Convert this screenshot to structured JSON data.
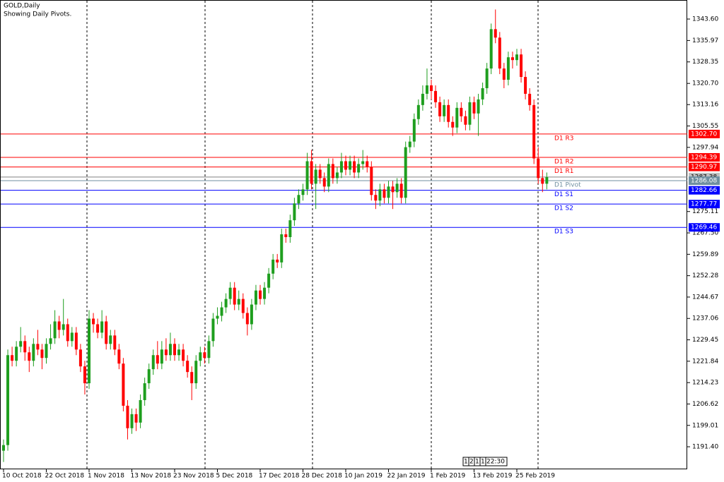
{
  "chart_data": {
    "type": "candlestick",
    "title": "GOLD,Daily",
    "subtitle": "Showing Daily Pivots.",
    "categories": [
      "10 Oct 2018",
      null,
      null,
      null,
      null,
      null,
      null,
      null,
      null,
      null,
      "22 Oct 2018",
      null,
      null,
      null,
      null,
      null,
      null,
      null,
      null,
      null,
      "1 Nov 2018",
      null,
      null,
      null,
      null,
      null,
      null,
      null,
      null,
      null,
      "13 Nov 2018",
      null,
      null,
      null,
      null,
      null,
      null,
      null,
      null,
      null,
      "23 Nov 2018",
      null,
      null,
      null,
      null,
      null,
      null,
      null,
      null,
      null,
      "5 Dec 2018",
      null,
      null,
      null,
      null,
      null,
      null,
      null,
      null,
      null,
      "17 Dec 2018",
      null,
      null,
      null,
      null,
      null,
      null,
      null,
      null,
      null,
      "28 Dec 2018",
      null,
      null,
      null,
      null,
      null,
      null,
      null,
      null,
      null,
      "10 Jan 2019",
      null,
      null,
      null,
      null,
      null,
      null,
      null,
      null,
      null,
      "22 Jan 2019",
      null,
      null,
      null,
      null,
      null,
      null,
      null,
      null,
      null,
      "1 Feb 2019",
      null,
      null,
      null,
      null,
      null,
      null,
      null,
      null,
      null,
      "13 Feb 2019",
      null,
      null,
      null,
      null,
      null,
      null,
      null,
      null,
      null,
      "25 Feb 2019",
      null,
      null,
      null,
      null,
      null,
      null,
      null
    ],
    "open": [
      1190,
      1192,
      1224,
      1222,
      1227,
      1229,
      1225,
      1222,
      1228,
      1226,
      1223,
      1228,
      1230,
      1236,
      1233,
      1235,
      1229,
      1232,
      1226,
      1220,
      1214,
      1237,
      1235,
      1232,
      1236,
      1228,
      1231,
      1226,
      1221,
      1206,
      1198,
      1203,
      1200,
      1208,
      1214,
      1219,
      1224,
      1221,
      1226,
      1224,
      1228,
      1224,
      1226,
      1222,
      1218,
      1214,
      1222,
      1225,
      1223,
      1229,
      1237,
      1238,
      1241,
      1244,
      1248,
      1242,
      1244,
      1239,
      1235,
      1242,
      1247,
      1244,
      1248,
      1253,
      1258,
      1257,
      1267,
      1266,
      1272,
      1278,
      1281,
      1283,
      1293,
      1285,
      1290,
      1287,
      1284,
      1292,
      1287,
      1289,
      1293,
      1290,
      1293,
      1289,
      1292,
      1293,
      1291,
      1281,
      1279,
      1283,
      1280,
      1284,
      1282,
      1285,
      1280,
      1298,
      1300,
      1308,
      1313,
      1317,
      1320,
      1318,
      1314,
      1309,
      1313,
      1307,
      1305,
      1312,
      1309,
      1306,
      1314,
      1310,
      1315,
      1319,
      1326,
      1340,
      1337,
      1326,
      1322,
      1330,
      1329,
      1331,
      1323,
      1317,
      1313,
      1294,
      1287,
      1285
    ],
    "high": [
      1194,
      1226,
      1227,
      1229,
      1234,
      1231,
      1227,
      1230,
      1233,
      1228,
      1230,
      1235,
      1240,
      1238,
      1244,
      1237,
      1234,
      1234,
      1228,
      1222,
      1240,
      1239,
      1237,
      1240,
      1238,
      1233,
      1233,
      1228,
      1223,
      1208,
      1205,
      1205,
      1210,
      1216,
      1221,
      1226,
      1229,
      1229,
      1230,
      1232,
      1230,
      1228,
      1228,
      1224,
      1220,
      1224,
      1227,
      1227,
      1231,
      1239,
      1241,
      1243,
      1246,
      1250,
      1250,
      1247,
      1246,
      1241,
      1244,
      1249,
      1249,
      1250,
      1255,
      1260,
      1260,
      1269,
      1269,
      1274,
      1280,
      1283,
      1285,
      1296,
      1297,
      1292,
      1292,
      1289,
      1294,
      1294,
      1291,
      1296,
      1295,
      1295,
      1295,
      1294,
      1297,
      1295,
      1293,
      1283,
      1285,
      1285,
      1286,
      1286,
      1287,
      1287,
      1300,
      1302,
      1310,
      1315,
      1320,
      1326,
      1322,
      1320,
      1316,
      1315,
      1315,
      1309,
      1314,
      1314,
      1311,
      1316,
      1316,
      1317,
      1321,
      1328,
      1342,
      1347,
      1339,
      1328,
      1332,
      1332,
      1333,
      1333,
      1325,
      1319,
      1315,
      1298,
      1290,
      1289
    ],
    "low": [
      1186,
      1190,
      1220,
      1220,
      1225,
      1222,
      1218,
      1220,
      1224,
      1219,
      1221,
      1226,
      1228,
      1230,
      1231,
      1227,
      1227,
      1224,
      1218,
      1210,
      1212,
      1232,
      1230,
      1230,
      1226,
      1226,
      1224,
      1219,
      1204,
      1194,
      1196,
      1197,
      1198,
      1206,
      1212,
      1217,
      1219,
      1219,
      1222,
      1222,
      1222,
      1222,
      1220,
      1216,
      1208,
      1212,
      1220,
      1221,
      1221,
      1227,
      1235,
      1236,
      1239,
      1242,
      1240,
      1240,
      1237,
      1231,
      1233,
      1240,
      1242,
      1242,
      1246,
      1251,
      1255,
      1255,
      1264,
      1264,
      1270,
      1276,
      1279,
      1281,
      1283,
      1276,
      1285,
      1282,
      1282,
      1285,
      1285,
      1287,
      1288,
      1288,
      1287,
      1287,
      1290,
      1289,
      1279,
      1276,
      1277,
      1278,
      1278,
      1276,
      1280,
      1278,
      1278,
      1296,
      1298,
      1306,
      1311,
      1315,
      1315,
      1312,
      1307,
      1307,
      1305,
      1302,
      1303,
      1307,
      1304,
      1304,
      1308,
      1302,
      1313,
      1317,
      1324,
      1335,
      1324,
      1319,
      1320,
      1326,
      1327,
      1321,
      1315,
      1311,
      1292,
      1285,
      1282,
      1283
    ],
    "close": [
      1192,
      1224,
      1222,
      1227,
      1229,
      1225,
      1222,
      1228,
      1226,
      1223,
      1228,
      1230,
      1236,
      1233,
      1235,
      1229,
      1232,
      1226,
      1220,
      1214,
      1237,
      1235,
      1232,
      1236,
      1228,
      1231,
      1226,
      1221,
      1206,
      1198,
      1203,
      1200,
      1208,
      1214,
      1219,
      1224,
      1221,
      1226,
      1224,
      1228,
      1224,
      1226,
      1222,
      1218,
      1214,
      1222,
      1225,
      1223,
      1229,
      1237,
      1238,
      1241,
      1244,
      1248,
      1242,
      1244,
      1239,
      1235,
      1242,
      1247,
      1244,
      1248,
      1253,
      1258,
      1257,
      1267,
      1266,
      1272,
      1278,
      1281,
      1283,
      1293,
      1285,
      1290,
      1287,
      1284,
      1292,
      1287,
      1289,
      1293,
      1290,
      1293,
      1289,
      1292,
      1293,
      1291,
      1281,
      1279,
      1283,
      1280,
      1284,
      1282,
      1285,
      1280,
      1298,
      1300,
      1308,
      1313,
      1317,
      1320,
      1318,
      1314,
      1309,
      1313,
      1307,
      1305,
      1312,
      1309,
      1306,
      1314,
      1310,
      1315,
      1319,
      1326,
      1340,
      1337,
      1326,
      1322,
      1330,
      1329,
      1331,
      1323,
      1317,
      1313,
      1294,
      1287,
      1285,
      1287.38
    ],
    "up_color": "#1e9e1e",
    "down_color": "#ff0000",
    "ylim": [
      1183.38,
      1350.38
    ],
    "yticks": [
      {
        "value": 1343.6,
        "label": "1343.60"
      },
      1335.97,
      1328.35,
      {
        "value": 1320.7,
        "label": "1320.70"
      },
      1313.16,
      1305.55,
      1297.94,
      1275.11,
      {
        "value": 1267.5,
        "label": "1267.50"
      },
      1259.89,
      1252.28,
      1244.67,
      1237.06,
      1229.45,
      1221.84,
      1214.23,
      1206.62,
      1199.01,
      {
        "value": 1191.4,
        "label": "1191.40"
      }
    ],
    "grid": false,
    "current_price": 1287.38,
    "pivots": [
      {
        "name": "D1  R3",
        "value": 1302.7,
        "label": "1302.70",
        "color": "#ff0000"
      },
      {
        "name": "D1  R2",
        "value": 1294.39,
        "label": "1294.39",
        "color": "#ff0000"
      },
      {
        "name": "D1  R1",
        "value": 1290.97,
        "label": "1290.97",
        "color": "#ff0000"
      },
      {
        "name": "D1  Pivot",
        "value": 1286.08,
        "label": "1286.08",
        "color": "#6f8fa0"
      },
      {
        "name": "D1  S1",
        "value": 1282.66,
        "label": "1282.66",
        "color": "#0000ff"
      },
      {
        "name": "D1  S2",
        "value": 1277.77,
        "label": "1277.77",
        "color": "#0000ff"
      },
      {
        "name": "D1  S3",
        "value": 1269.46,
        "label": "1269.46",
        "color": "#0000ff"
      }
    ],
    "status": [
      "1",
      "2",
      "1",
      "1",
      "22:30"
    ]
  }
}
